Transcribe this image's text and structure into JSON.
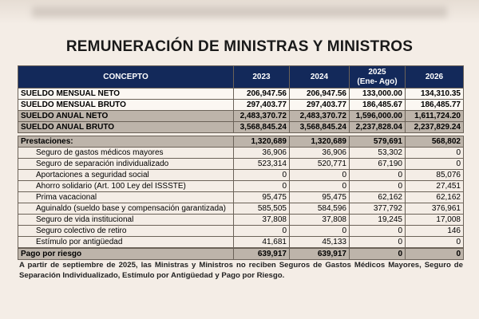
{
  "title": "REMUNERACIÓN DE MINISTRAS Y MINISTROS",
  "headers": [
    "CONCEPTO",
    "2023",
    "2024",
    "2025\n(Ene- Ago)",
    "2026"
  ],
  "header_2025": [
    "2025",
    "(Ene- Ago)"
  ],
  "salary_rows": [
    {
      "label": "SUELDO MENSUAL NETO",
      "values": [
        "206,947.56",
        "206,947.56",
        "133,000.00",
        "134,310.35"
      ]
    },
    {
      "label": "SUELDO MENSUAL BRUTO",
      "values": [
        "297,403.77",
        "297,403.77",
        "186,485.67",
        "186,485.77"
      ]
    },
    {
      "label": "SUELDO ANUAL NETO",
      "values": [
        "2,483,370.72",
        "2,483,370.72",
        "1,596,000.00",
        "1,611,724.20"
      ]
    },
    {
      "label": "SUELDO ANUAL BRUTO",
      "values": [
        "3,568,845.24",
        "3,568,845.24",
        "2,237,828.04",
        "2,237,829.24"
      ]
    }
  ],
  "benefits_total": {
    "label": "Prestaciones:",
    "values": [
      "1,320,689",
      "1,320,689",
      "579,691",
      "568,802"
    ]
  },
  "benefit_rows": [
    {
      "label": "Seguro de gastos médicos mayores",
      "values": [
        "36,906",
        "36,906",
        "53,302",
        "0"
      ]
    },
    {
      "label": "Seguro de separación individualizado",
      "values": [
        "523,314",
        "520,771",
        "67,190",
        "0"
      ]
    },
    {
      "label": "Aportaciones a seguridad social",
      "values": [
        "0",
        "0",
        "0",
        "85,076"
      ]
    },
    {
      "label": "Ahorro solidario (Art. 100 Ley del ISSSTE)",
      "values": [
        "0",
        "0",
        "0",
        "27,451"
      ]
    },
    {
      "label": "Prima vacacional",
      "values": [
        "95,475",
        "95,475",
        "62,162",
        "62,162"
      ]
    },
    {
      "label": "Aguinaldo (sueldo base y compensación garantizada)",
      "values": [
        "585,505",
        "584,596",
        "377,792",
        "376,961"
      ]
    },
    {
      "label": "Seguro de vida institucional",
      "values": [
        "37,808",
        "37,808",
        "19,245",
        "17,008"
      ]
    },
    {
      "label": "Seguro colectivo de retiro",
      "values": [
        "0",
        "0",
        "0",
        "146"
      ]
    },
    {
      "label": "Estímulo por antigüedad",
      "values": [
        "41,681",
        "45,133",
        "0",
        "0"
      ]
    }
  ],
  "risk_pay": {
    "label": "Pago por riesgo",
    "values": [
      "639,917",
      "639,917",
      "0",
      "0"
    ]
  },
  "note": "A partir de septiembre de 2025, las Ministras y Ministros no reciben Seguros de Gastos Médicos Mayores, Seguro de Separación Individualizado, Estímulo por Antigüedad y Pago por Riesgo.",
  "colors": {
    "header": "#13295a",
    "shaded_row": "#bdb4aa",
    "background": "#f4ede6"
  }
}
